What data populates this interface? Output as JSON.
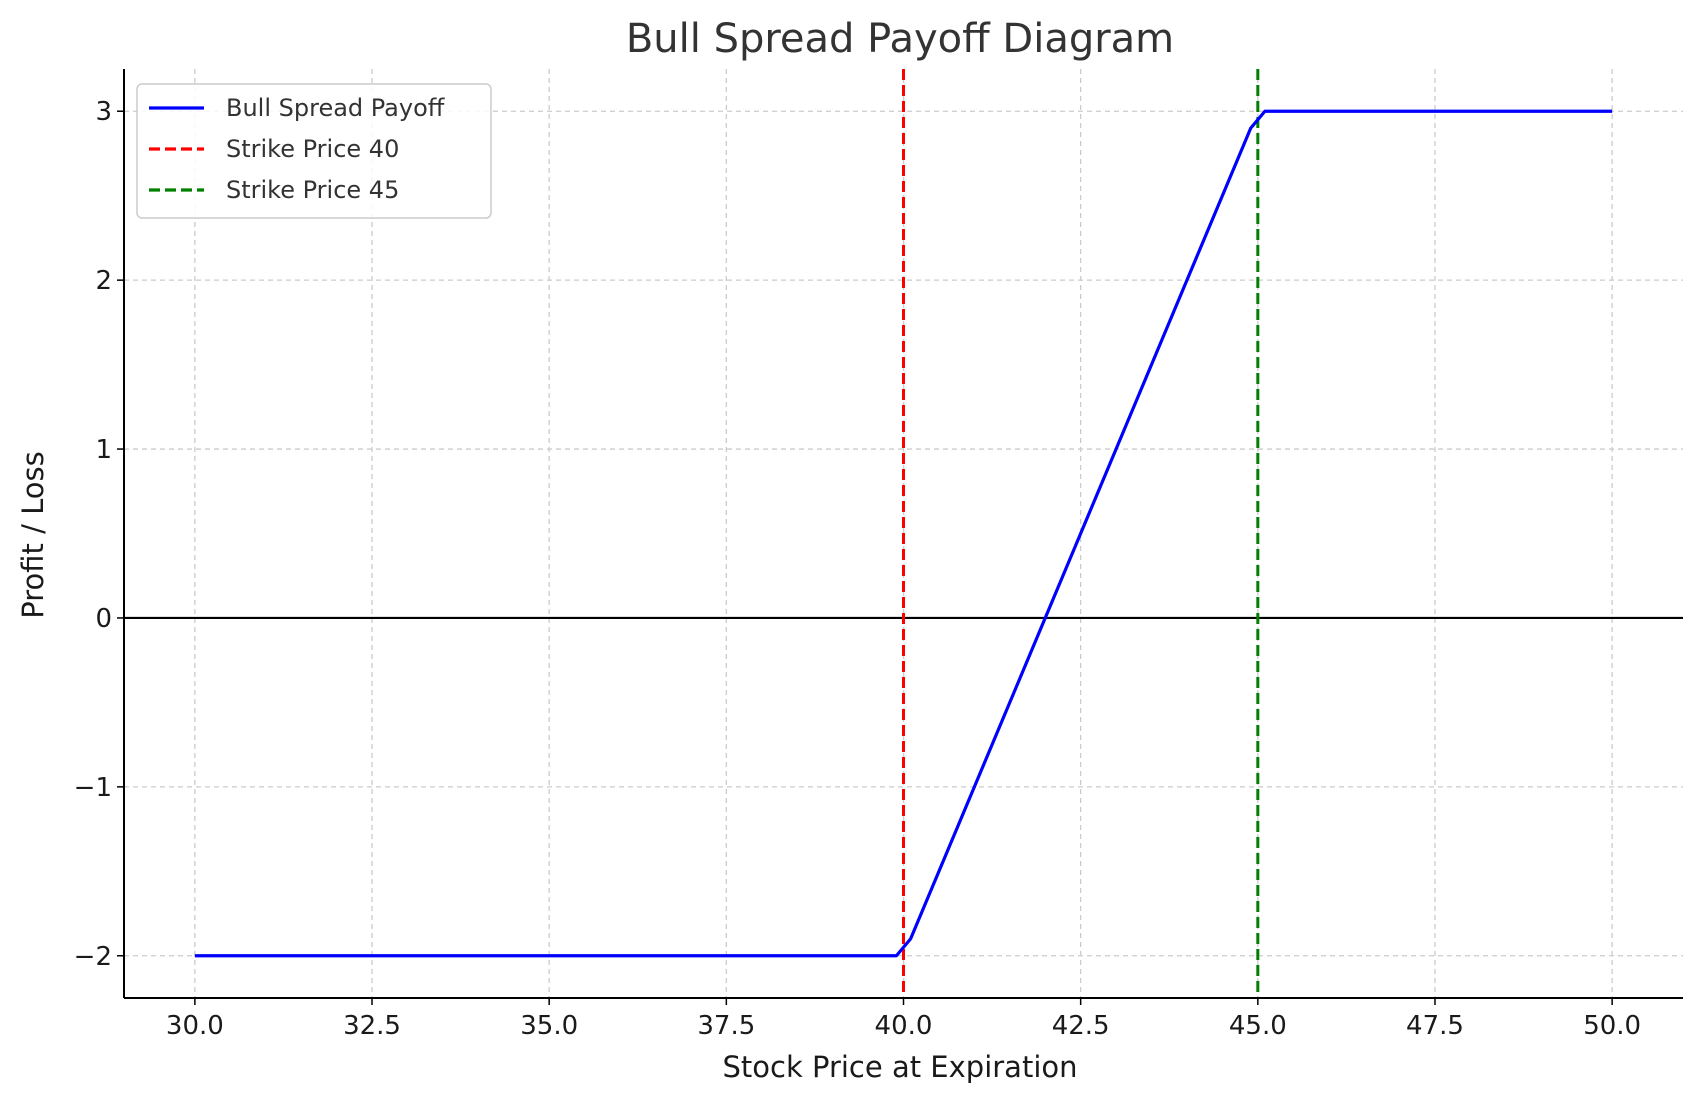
{
  "chart_data": {
    "type": "line",
    "title": "Bull Spread Payoff Diagram",
    "xlabel": "Stock Price at Expiration",
    "ylabel": "Profit / Loss",
    "xlim": [
      29.0,
      51.0
    ],
    "ylim": [
      -2.25,
      3.25
    ],
    "xticks": [
      30.0,
      32.5,
      35.0,
      37.5,
      40.0,
      42.5,
      45.0,
      47.5,
      50.0
    ],
    "xtick_labels": [
      "30.0",
      "32.5",
      "35.0",
      "37.5",
      "40.0",
      "42.5",
      "45.0",
      "47.5",
      "50.0"
    ],
    "yticks": [
      -2,
      -1,
      0,
      1,
      2,
      3
    ],
    "ytick_labels": [
      "−2",
      "−1",
      "0",
      "1",
      "2",
      "3"
    ],
    "grid": true,
    "legend_position": "top-left",
    "zero_line": true,
    "series": [
      {
        "name": "Bull Spread Payoff",
        "color": "#0000ff",
        "style": "solid",
        "x": [
          30.0,
          39.9,
          40.1,
          44.9,
          45.1,
          50.0
        ],
        "y": [
          -2.0,
          -2.0,
          -1.9,
          2.9,
          3.0,
          3.0
        ]
      }
    ],
    "vlines": [
      {
        "name": "Strike Price 40",
        "x": 40,
        "color": "#ff0000",
        "style": "dashed"
      },
      {
        "name": "Strike Price 45",
        "x": 45,
        "color": "#008000",
        "style": "dashed"
      }
    ]
  }
}
